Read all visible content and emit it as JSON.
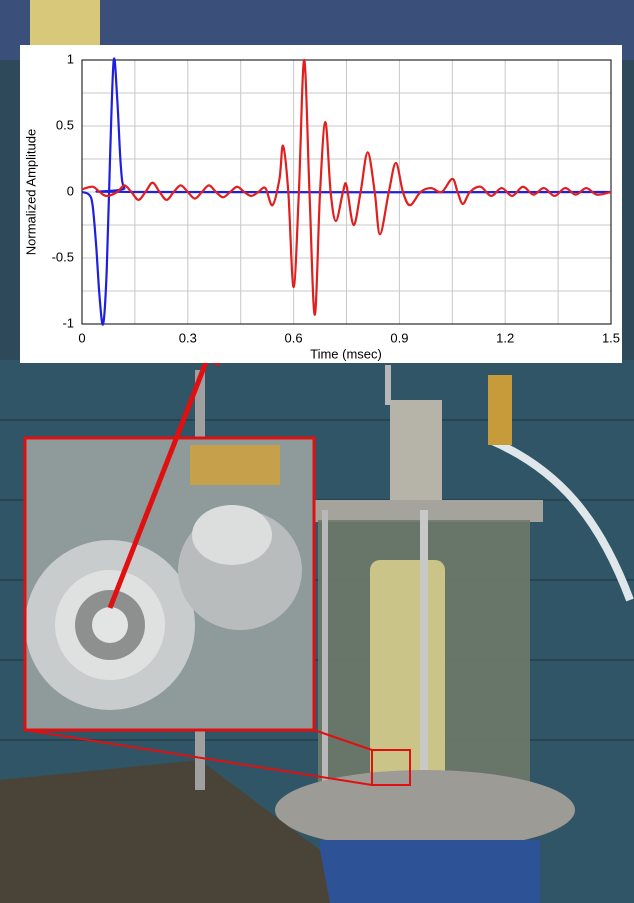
{
  "chart_data": {
    "type": "line",
    "x_label": "Time (msec)",
    "y_label": "Normalized Amplitude",
    "xlim": [
      0,
      1.5
    ],
    "ylim": [
      -1,
      1
    ],
    "xticks": [
      0,
      0.3,
      0.6,
      0.9,
      1.2,
      1.5
    ],
    "yticks": [
      -1,
      -0.5,
      0,
      0.5,
      1
    ],
    "xminor": [
      0.15,
      0.45,
      0.75,
      1.05,
      1.35
    ],
    "yminor": [
      -0.75,
      -0.25,
      0.25,
      0.75
    ],
    "grid": true,
    "series": [
      {
        "color": "#1f1fe0",
        "x": [
          0,
          0.02,
          0.03,
          0.04,
          0.05,
          0.06,
          0.07,
          0.08,
          0.09,
          0.1,
          0.11,
          0.12,
          0.15,
          1.5
        ],
        "values": [
          0,
          -0.02,
          -0.1,
          -0.4,
          -0.8,
          -1,
          -0.6,
          0.3,
          1,
          0.7,
          0.2,
          0.03,
          0,
          0
        ]
      },
      {
        "color": "#e01f1f",
        "x": [
          0,
          0.03,
          0.05,
          0.07,
          0.1,
          0.12,
          0.14,
          0.16,
          0.18,
          0.2,
          0.22,
          0.24,
          0.26,
          0.28,
          0.3,
          0.32,
          0.34,
          0.36,
          0.38,
          0.4,
          0.42,
          0.44,
          0.46,
          0.48,
          0.5,
          0.52,
          0.54,
          0.56,
          0.57,
          0.585,
          0.6,
          0.615,
          0.63,
          0.645,
          0.66,
          0.675,
          0.69,
          0.705,
          0.72,
          0.74,
          0.75,
          0.77,
          0.79,
          0.81,
          0.83,
          0.845,
          0.87,
          0.89,
          0.91,
          0.93,
          0.96,
          0.99,
          1.02,
          1.05,
          1.065,
          1.08,
          1.1,
          1.13,
          1.16,
          1.19,
          1.22,
          1.25,
          1.28,
          1.31,
          1.34,
          1.37,
          1.4,
          1.43,
          1.46,
          1.5
        ],
        "values": [
          0.02,
          0.04,
          0,
          -0.03,
          0,
          0.05,
          0,
          -0.06,
          0,
          0.07,
          0,
          -0.06,
          0,
          0.05,
          0,
          -0.05,
          0,
          0.05,
          0,
          -0.04,
          0,
          0.04,
          0,
          -0.03,
          0,
          0.03,
          -0.1,
          0.1,
          0.35,
          0,
          -0.72,
          0,
          1,
          0,
          -0.93,
          0,
          0.53,
          0,
          -0.22,
          0,
          0.05,
          -0.25,
          0,
          0.3,
          0,
          -0.32,
          0,
          0.22,
          0,
          -0.1,
          0,
          0.03,
          0,
          0.1,
          0,
          -0.09,
          0,
          0.04,
          -0.03,
          0.03,
          -0.03,
          0.04,
          -0.02,
          0.03,
          -0.03,
          0.03,
          -0.02,
          0.03,
          -0.02,
          0
        ]
      }
    ]
  }
}
